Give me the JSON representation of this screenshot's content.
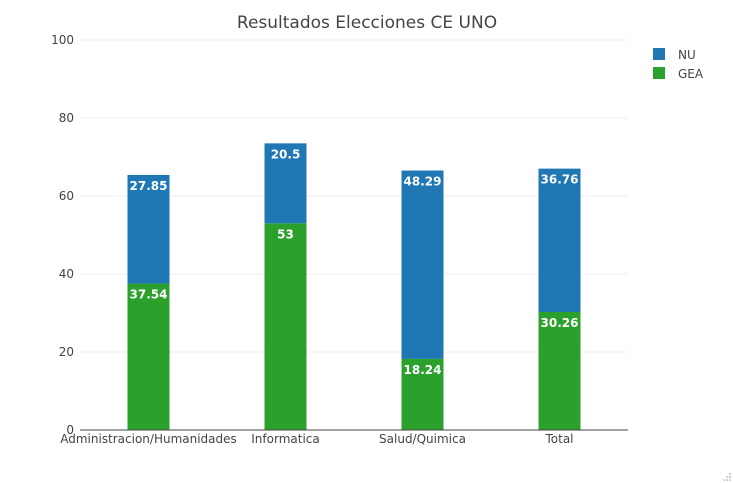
{
  "chart_data": {
    "type": "bar",
    "stacked": true,
    "title": "Resultados Elecciones CE UNO",
    "xlabel": "",
    "ylabel": "",
    "categories": [
      "Administracion/Humanidades",
      "Informatica",
      "Salud/Quimica",
      "Total"
    ],
    "series": [
      {
        "name": "GEA",
        "color": "#2ca02c",
        "values": [
          37.54,
          53,
          18.24,
          30.26
        ]
      },
      {
        "name": "NU",
        "color": "#1f77b4",
        "values": [
          27.85,
          20.5,
          48.29,
          36.76
        ]
      }
    ],
    "ylim": [
      0,
      100
    ],
    "yticks": [
      0,
      20,
      40,
      60,
      80,
      100
    ],
    "grid": true,
    "legend": {
      "position": "top-right",
      "order": [
        "NU",
        "GEA"
      ]
    },
    "data_labels": true
  }
}
